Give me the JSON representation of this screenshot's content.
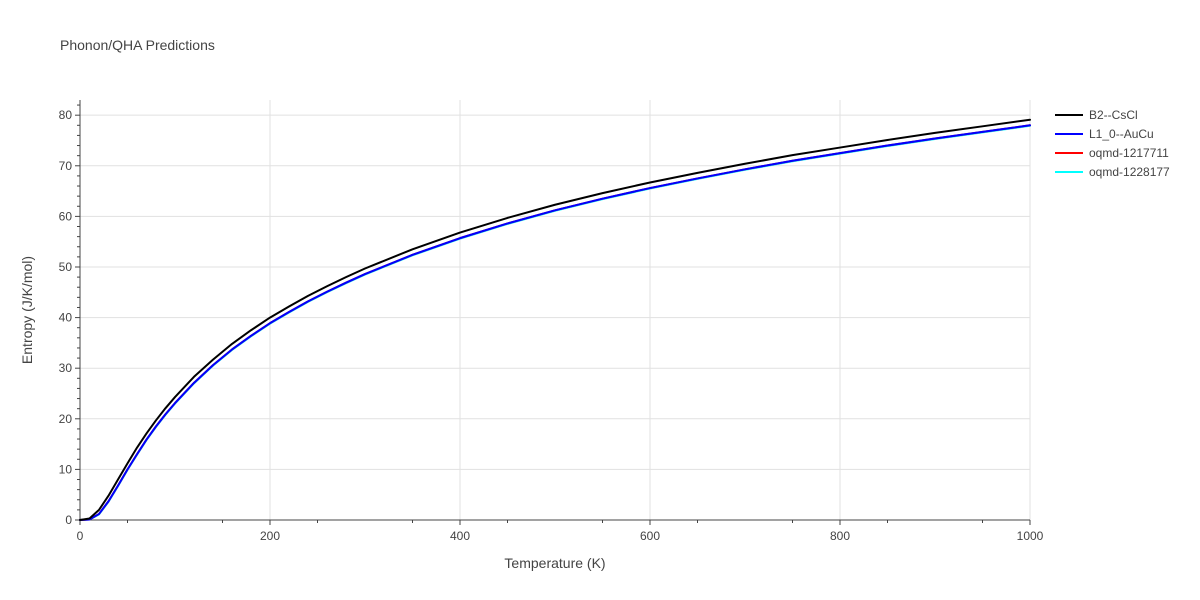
{
  "chart_data": {
    "type": "line",
    "title": "Phonon/QHA Predictions",
    "xlabel": "Temperature (K)",
    "ylabel": "Entropy (J/K/mol)",
    "xlim": [
      0,
      1000
    ],
    "ylim": [
      0,
      83
    ],
    "x_ticks": [
      0,
      200,
      400,
      600,
      800,
      1000
    ],
    "y_ticks": [
      0,
      10,
      20,
      30,
      40,
      50,
      60,
      70,
      80
    ],
    "grid": true,
    "legend_position": "top-right",
    "x": [
      0,
      10,
      20,
      30,
      40,
      50,
      60,
      70,
      80,
      90,
      100,
      120,
      140,
      160,
      180,
      200,
      220,
      240,
      260,
      280,
      300,
      350,
      400,
      450,
      500,
      550,
      600,
      650,
      700,
      750,
      800,
      850,
      900,
      950,
      1000
    ],
    "series": [
      {
        "name": "B2--CsCl",
        "color": "#000000",
        "values": [
          0,
          0.3,
          2.0,
          4.8,
          8.0,
          11.2,
          14.3,
          17.1,
          19.7,
          22.1,
          24.3,
          28.3,
          31.7,
          34.8,
          37.5,
          40.0,
          42.2,
          44.3,
          46.2,
          48.0,
          49.7,
          53.5,
          56.8,
          59.7,
          62.3,
          64.6,
          66.7,
          68.6,
          70.4,
          72.1,
          73.6,
          75.1,
          76.5,
          77.8,
          79.1
        ]
      },
      {
        "name": "L1_0--AuCu",
        "color": "#0000ff",
        "values": [
          0,
          0.1,
          1.2,
          3.7,
          6.8,
          10.0,
          13.0,
          15.9,
          18.5,
          20.9,
          23.1,
          27.1,
          30.6,
          33.7,
          36.4,
          38.9,
          41.1,
          43.2,
          45.1,
          46.9,
          48.6,
          52.4,
          55.7,
          58.6,
          61.2,
          63.5,
          65.6,
          67.5,
          69.3,
          71.0,
          72.5,
          74.0,
          75.4,
          76.7,
          78.0
        ]
      },
      {
        "name": "oqmd-1217711",
        "color": "#ff0000",
        "values": [
          0,
          0.1,
          1.2,
          3.7,
          6.8,
          10.0,
          13.0,
          15.9,
          18.5,
          20.9,
          23.1,
          27.1,
          30.6,
          33.7,
          36.4,
          38.9,
          41.1,
          43.2,
          45.1,
          46.9,
          48.6,
          52.4,
          55.7,
          58.6,
          61.2,
          63.5,
          65.6,
          67.5,
          69.3,
          71.0,
          72.5,
          74.0,
          75.4,
          76.7,
          78.0
        ]
      },
      {
        "name": "oqmd-1228177",
        "color": "#00ffff",
        "values": [
          0,
          0.1,
          1.1,
          3.6,
          6.7,
          9.9,
          12.9,
          15.8,
          18.4,
          20.8,
          23.0,
          27.0,
          30.5,
          33.6,
          36.3,
          38.8,
          41.0,
          43.1,
          45.0,
          46.8,
          48.5,
          52.3,
          55.6,
          58.5,
          61.1,
          63.4,
          65.5,
          67.4,
          69.2,
          70.9,
          72.4,
          73.9,
          75.3,
          76.6,
          77.9
        ]
      }
    ]
  }
}
